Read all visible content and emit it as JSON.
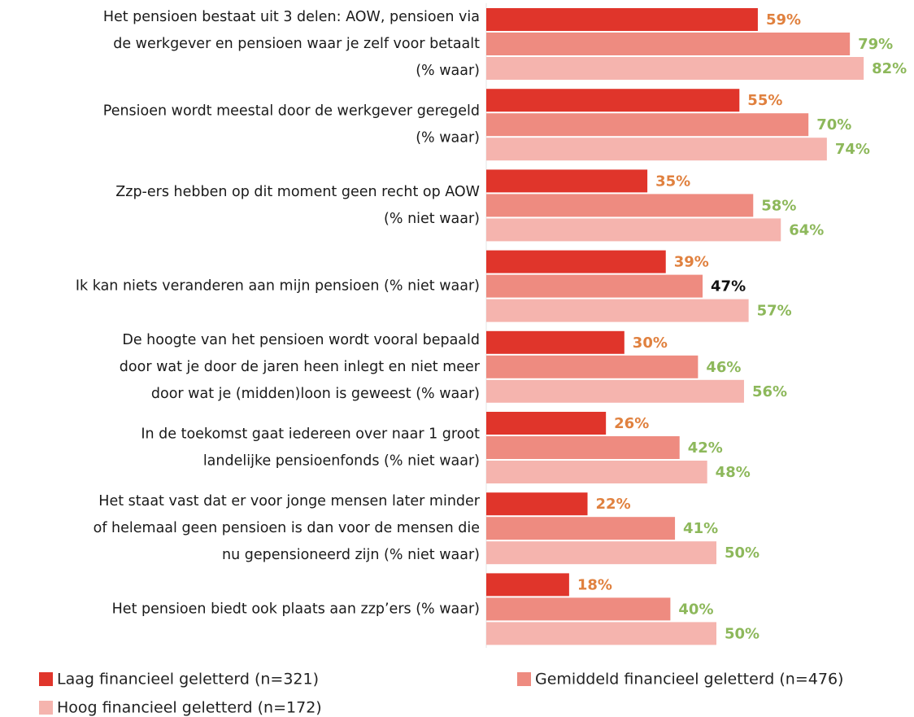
{
  "chart_data": {
    "type": "hbar",
    "categories": [
      [
        "Het pensioen bestaat uit 3 delen: AOW, pensioen via",
        "de werkgever en pensioen waar je zelf voor betaalt",
        "(% waar)"
      ],
      [
        "Pensioen wordt meestal door de werkgever geregeld",
        "(% waar)"
      ],
      [
        "Zzp-ers hebben op dit moment geen recht op AOW",
        "(% niet waar)"
      ],
      [
        "Ik kan niets veranderen aan mijn pensioen (% niet waar)"
      ],
      [
        "De hoogte van het pensioen wordt vooral bepaald",
        "door wat je door de jaren heen inlegt en niet meer",
        "door wat je (midden)loon is geweest (% waar)"
      ],
      [
        "In de toekomst gaat iedereen over naar 1 groot",
        "landelijke pensioenfonds (% niet waar)"
      ],
      [
        "Het staat vast dat er voor jonge mensen later minder",
        "of helemaal geen pensioen is dan voor de mensen die",
        "nu gepensioneerd zijn (% niet waar)"
      ],
      [
        "Het pensioen biedt ook plaats aan zzp’ers (% waar)"
      ]
    ],
    "series": [
      {
        "name": "Laag financieel geletterd (n=321)",
        "color": "#e0352b",
        "label_color": "#e0813f",
        "values": [
          59,
          55,
          35,
          39,
          30,
          26,
          22,
          18
        ],
        "value_labels": [
          "59%",
          "55%",
          "35%",
          "39%",
          "30%",
          "26%",
          "22%",
          "18%"
        ]
      },
      {
        "name": "Gemiddeld financieel geletterd (n=476)",
        "color": "#ee8b80",
        "label_color": "#8db85b",
        "label_colors": [
          "#8db85b",
          "#8db85b",
          "#8db85b",
          "#111111",
          "#8db85b",
          "#8db85b",
          "#8db85b",
          "#8db85b"
        ],
        "values": [
          79,
          70,
          58,
          47,
          46,
          42,
          41,
          40
        ],
        "value_labels": [
          "79%",
          "70%",
          "58%",
          "47%",
          "46%",
          "42%",
          "41%",
          "40%"
        ]
      },
      {
        "name": "Hoog financieel geletterd (n=172)",
        "color": "#f5b4ae",
        "label_color": "#8db85b",
        "values": [
          82,
          74,
          64,
          57,
          56,
          48,
          50,
          50
        ],
        "value_labels": [
          "82%",
          "74%",
          "64%",
          "57%",
          "56%",
          "48%",
          "50%",
          "50%"
        ]
      }
    ]
  }
}
